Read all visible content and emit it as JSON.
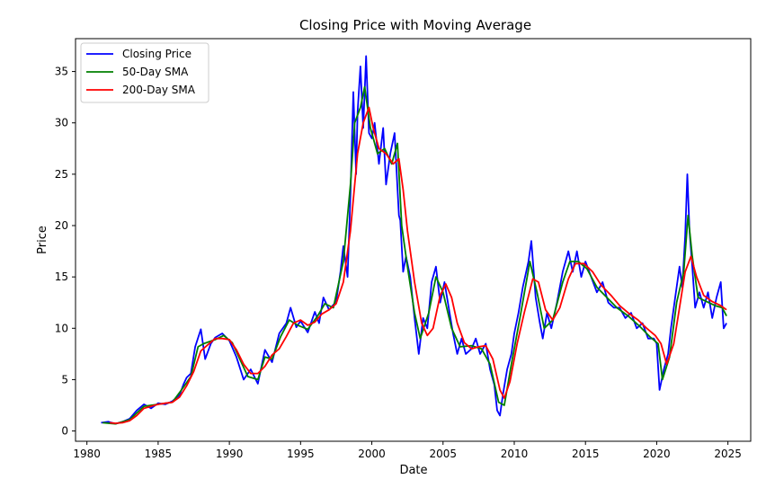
{
  "chart_data": {
    "type": "line",
    "title": "Closing Price with Moving Average",
    "xlabel": "Date",
    "ylabel": "Price",
    "xlim": [
      1979.2,
      2026.6
    ],
    "ylim": [
      -1.0,
      38.2
    ],
    "xticks": [
      1980,
      1985,
      1990,
      1995,
      2000,
      2005,
      2010,
      2015,
      2020,
      2025
    ],
    "yticks": [
      0,
      5,
      10,
      15,
      20,
      25,
      30,
      35
    ],
    "grid": false,
    "legend_position": "top-left",
    "series": [
      {
        "name": "Closing Price",
        "color": "#0000ff",
        "points": [
          [
            1981.0,
            0.8
          ],
          [
            1981.5,
            0.9
          ],
          [
            1982.0,
            0.7
          ],
          [
            1982.5,
            0.9
          ],
          [
            1983.0,
            1.2
          ],
          [
            1983.5,
            2.0
          ],
          [
            1984.0,
            2.6
          ],
          [
            1984.5,
            2.2
          ],
          [
            1985.0,
            2.7
          ],
          [
            1985.5,
            2.6
          ],
          [
            1986.0,
            2.9
          ],
          [
            1986.5,
            3.5
          ],
          [
            1986.8,
            4.6
          ],
          [
            1987.0,
            5.2
          ],
          [
            1987.3,
            5.6
          ],
          [
            1987.6,
            8.2
          ],
          [
            1988.0,
            9.9
          ],
          [
            1988.3,
            7.0
          ],
          [
            1988.7,
            8.5
          ],
          [
            1989.0,
            9.1
          ],
          [
            1989.5,
            9.5
          ],
          [
            1990.0,
            8.8
          ],
          [
            1990.5,
            7.2
          ],
          [
            1991.0,
            5.0
          ],
          [
            1991.5,
            6.0
          ],
          [
            1992.0,
            4.6
          ],
          [
            1992.5,
            7.9
          ],
          [
            1993.0,
            6.7
          ],
          [
            1993.5,
            9.5
          ],
          [
            1994.0,
            10.5
          ],
          [
            1994.3,
            12.0
          ],
          [
            1994.7,
            10.1
          ],
          [
            1995.0,
            10.7
          ],
          [
            1995.5,
            9.6
          ],
          [
            1996.0,
            11.6
          ],
          [
            1996.3,
            10.5
          ],
          [
            1996.6,
            13.0
          ],
          [
            1997.0,
            11.8
          ],
          [
            1997.5,
            12.6
          ],
          [
            1997.8,
            15.5
          ],
          [
            1998.0,
            18.0
          ],
          [
            1998.3,
            15.0
          ],
          [
            1998.5,
            23.0
          ],
          [
            1998.7,
            33.0
          ],
          [
            1998.9,
            25.0
          ],
          [
            1999.0,
            31.0
          ],
          [
            1999.2,
            35.5
          ],
          [
            1999.4,
            29.5
          ],
          [
            1999.6,
            36.5
          ],
          [
            1999.8,
            29.0
          ],
          [
            2000.0,
            28.5
          ],
          [
            2000.2,
            30.0
          ],
          [
            2000.5,
            26.0
          ],
          [
            2000.8,
            29.5
          ],
          [
            2001.0,
            24.0
          ],
          [
            2001.3,
            27.0
          ],
          [
            2001.6,
            29.0
          ],
          [
            2001.9,
            21.0
          ],
          [
            2002.0,
            20.5
          ],
          [
            2002.2,
            15.5
          ],
          [
            2002.4,
            17.0
          ],
          [
            2002.7,
            15.0
          ],
          [
            2003.0,
            11.0
          ],
          [
            2003.3,
            7.5
          ],
          [
            2003.6,
            11.0
          ],
          [
            2003.9,
            10.0
          ],
          [
            2004.2,
            14.5
          ],
          [
            2004.5,
            16.0
          ],
          [
            2004.8,
            12.5
          ],
          [
            2005.1,
            14.5
          ],
          [
            2005.4,
            12.0
          ],
          [
            2005.7,
            9.5
          ],
          [
            2006.0,
            7.5
          ],
          [
            2006.3,
            9.0
          ],
          [
            2006.6,
            7.5
          ],
          [
            2007.0,
            8.0
          ],
          [
            2007.3,
            9.0
          ],
          [
            2007.6,
            7.5
          ],
          [
            2008.0,
            8.5
          ],
          [
            2008.3,
            6.0
          ],
          [
            2008.6,
            4.5
          ],
          [
            2008.8,
            2.0
          ],
          [
            2009.0,
            1.5
          ],
          [
            2009.2,
            3.5
          ],
          [
            2009.5,
            6.0
          ],
          [
            2009.8,
            7.5
          ],
          [
            2010.0,
            9.5
          ],
          [
            2010.3,
            11.5
          ],
          [
            2010.6,
            14.0
          ],
          [
            2011.0,
            16.5
          ],
          [
            2011.2,
            18.5
          ],
          [
            2011.5,
            13.0
          ],
          [
            2011.8,
            10.5
          ],
          [
            2012.0,
            9.0
          ],
          [
            2012.3,
            11.5
          ],
          [
            2012.6,
            10.0
          ],
          [
            2013.0,
            12.5
          ],
          [
            2013.4,
            15.5
          ],
          [
            2013.8,
            17.5
          ],
          [
            2014.1,
            15.5
          ],
          [
            2014.4,
            17.5
          ],
          [
            2014.7,
            15.0
          ],
          [
            2015.0,
            16.5
          ],
          [
            2015.4,
            15.0
          ],
          [
            2015.8,
            13.5
          ],
          [
            2016.2,
            14.5
          ],
          [
            2016.6,
            12.5
          ],
          [
            2017.0,
            12.0
          ],
          [
            2017.4,
            12.0
          ],
          [
            2017.8,
            11.0
          ],
          [
            2018.2,
            11.5
          ],
          [
            2018.6,
            10.0
          ],
          [
            2019.0,
            10.5
          ],
          [
            2019.4,
            9.0
          ],
          [
            2019.8,
            9.0
          ],
          [
            2020.0,
            8.5
          ],
          [
            2020.2,
            4.0
          ],
          [
            2020.5,
            6.0
          ],
          [
            2020.8,
            7.5
          ],
          [
            2021.0,
            10.0
          ],
          [
            2021.3,
            13.0
          ],
          [
            2021.6,
            16.0
          ],
          [
            2021.8,
            14.0
          ],
          [
            2022.0,
            19.0
          ],
          [
            2022.15,
            25.0
          ],
          [
            2022.3,
            19.5
          ],
          [
            2022.5,
            16.0
          ],
          [
            2022.7,
            12.0
          ],
          [
            2023.0,
            13.5
          ],
          [
            2023.3,
            12.0
          ],
          [
            2023.6,
            13.5
          ],
          [
            2023.9,
            11.0
          ],
          [
            2024.2,
            13.0
          ],
          [
            2024.5,
            14.5
          ],
          [
            2024.7,
            10.0
          ],
          [
            2024.9,
            10.5
          ]
        ]
      },
      {
        "name": "50-Day SMA",
        "color": "#008000",
        "points": [
          [
            1981.1,
            0.8
          ],
          [
            1982.0,
            0.7
          ],
          [
            1983.0,
            1.1
          ],
          [
            1984.0,
            2.4
          ],
          [
            1985.0,
            2.6
          ],
          [
            1986.0,
            2.8
          ],
          [
            1986.8,
            4.3
          ],
          [
            1987.3,
            5.3
          ],
          [
            1987.8,
            8.2
          ],
          [
            1988.2,
            8.5
          ],
          [
            1989.0,
            8.9
          ],
          [
            1989.6,
            9.3
          ],
          [
            1990.2,
            8.6
          ],
          [
            1990.8,
            6.8
          ],
          [
            1991.3,
            5.3
          ],
          [
            1992.0,
            5.0
          ],
          [
            1992.5,
            7.2
          ],
          [
            1993.0,
            7.0
          ],
          [
            1993.6,
            9.2
          ],
          [
            1994.2,
            10.8
          ],
          [
            1994.8,
            10.3
          ],
          [
            1995.5,
            9.9
          ],
          [
            1996.2,
            11.2
          ],
          [
            1996.7,
            12.4
          ],
          [
            1997.3,
            12.0
          ],
          [
            1998.0,
            16.5
          ],
          [
            1998.5,
            24.0
          ],
          [
            1998.8,
            30.0
          ],
          [
            1999.2,
            31.5
          ],
          [
            1999.5,
            33.5
          ],
          [
            1999.9,
            29.5
          ],
          [
            2000.4,
            27.0
          ],
          [
            2000.9,
            27.5
          ],
          [
            2001.4,
            26.0
          ],
          [
            2001.8,
            28.0
          ],
          [
            2002.1,
            20.0
          ],
          [
            2002.5,
            16.0
          ],
          [
            2003.0,
            11.5
          ],
          [
            2003.4,
            9.0
          ],
          [
            2004.0,
            11.5
          ],
          [
            2004.5,
            15.0
          ],
          [
            2005.0,
            13.5
          ],
          [
            2005.6,
            10.0
          ],
          [
            2006.2,
            8.2
          ],
          [
            2007.0,
            8.3
          ],
          [
            2007.7,
            8.0
          ],
          [
            2008.3,
            6.5
          ],
          [
            2008.9,
            2.8
          ],
          [
            2009.3,
            2.5
          ],
          [
            2009.8,
            6.5
          ],
          [
            2010.4,
            11.0
          ],
          [
            2011.1,
            16.5
          ],
          [
            2011.6,
            13.5
          ],
          [
            2012.1,
            10.0
          ],
          [
            2012.7,
            10.8
          ],
          [
            2013.4,
            14.5
          ],
          [
            2013.9,
            16.5
          ],
          [
            2014.5,
            16.5
          ],
          [
            2015.1,
            15.8
          ],
          [
            2015.8,
            14.0
          ],
          [
            2016.5,
            13.0
          ],
          [
            2017.2,
            12.0
          ],
          [
            2018.0,
            11.2
          ],
          [
            2018.8,
            10.2
          ],
          [
            2019.5,
            9.2
          ],
          [
            2020.1,
            8.5
          ],
          [
            2020.4,
            5.0
          ],
          [
            2020.9,
            7.2
          ],
          [
            2021.4,
            12.5
          ],
          [
            2021.9,
            15.5
          ],
          [
            2022.2,
            21.0
          ],
          [
            2022.5,
            17.0
          ],
          [
            2022.9,
            13.0
          ],
          [
            2023.5,
            12.6
          ],
          [
            2024.1,
            12.2
          ],
          [
            2024.6,
            12.0
          ],
          [
            2024.9,
            11.2
          ]
        ]
      },
      {
        "name": "200-Day SMA",
        "color": "#ff0000",
        "points": [
          [
            1981.6,
            0.8
          ],
          [
            1982.0,
            0.75
          ],
          [
            1982.5,
            0.8
          ],
          [
            1983.0,
            1.0
          ],
          [
            1983.5,
            1.5
          ],
          [
            1984.0,
            2.2
          ],
          [
            1984.5,
            2.4
          ],
          [
            1985.0,
            2.6
          ],
          [
            1985.5,
            2.7
          ],
          [
            1986.0,
            2.8
          ],
          [
            1986.5,
            3.3
          ],
          [
            1987.0,
            4.4
          ],
          [
            1987.5,
            5.8
          ],
          [
            1988.0,
            7.8
          ],
          [
            1988.5,
            8.4
          ],
          [
            1989.0,
            9.0
          ],
          [
            1989.5,
            9.0
          ],
          [
            1990.0,
            8.9
          ],
          [
            1990.5,
            7.9
          ],
          [
            1991.0,
            6.5
          ],
          [
            1991.5,
            5.6
          ],
          [
            1992.0,
            5.6
          ],
          [
            1992.5,
            6.3
          ],
          [
            1993.0,
            7.4
          ],
          [
            1993.5,
            8.0
          ],
          [
            1994.0,
            9.2
          ],
          [
            1994.5,
            10.5
          ],
          [
            1995.0,
            10.8
          ],
          [
            1995.5,
            10.3
          ],
          [
            1996.0,
            10.6
          ],
          [
            1996.5,
            11.4
          ],
          [
            1997.0,
            11.8
          ],
          [
            1997.5,
            12.4
          ],
          [
            1998.0,
            14.5
          ],
          [
            1998.5,
            19.5
          ],
          [
            1999.0,
            27.0
          ],
          [
            1999.4,
            30.0
          ],
          [
            1999.8,
            31.5
          ],
          [
            2000.1,
            29.5
          ],
          [
            2000.5,
            27.5
          ],
          [
            2001.0,
            27.0
          ],
          [
            2001.5,
            26.0
          ],
          [
            2001.9,
            26.5
          ],
          [
            2002.2,
            23.5
          ],
          [
            2002.5,
            19.5
          ],
          [
            2003.0,
            14.5
          ],
          [
            2003.5,
            10.5
          ],
          [
            2003.9,
            9.3
          ],
          [
            2004.3,
            10.0
          ],
          [
            2004.8,
            13.2
          ],
          [
            2005.2,
            14.3
          ],
          [
            2005.6,
            13.0
          ],
          [
            2006.0,
            10.5
          ],
          [
            2006.5,
            8.6
          ],
          [
            2007.0,
            8.0
          ],
          [
            2007.5,
            8.2
          ],
          [
            2008.0,
            8.3
          ],
          [
            2008.5,
            7.0
          ],
          [
            2009.0,
            4.0
          ],
          [
            2009.3,
            3.2
          ],
          [
            2009.7,
            4.8
          ],
          [
            2010.2,
            8.5
          ],
          [
            2010.7,
            11.5
          ],
          [
            2011.3,
            14.8
          ],
          [
            2011.7,
            14.5
          ],
          [
            2012.2,
            11.8
          ],
          [
            2012.7,
            10.8
          ],
          [
            2013.2,
            12.0
          ],
          [
            2013.8,
            14.8
          ],
          [
            2014.3,
            16.3
          ],
          [
            2014.9,
            16.3
          ],
          [
            2015.5,
            15.5
          ],
          [
            2016.1,
            14.2
          ],
          [
            2016.8,
            13.2
          ],
          [
            2017.4,
            12.2
          ],
          [
            2018.0,
            11.5
          ],
          [
            2018.7,
            10.8
          ],
          [
            2019.3,
            10.0
          ],
          [
            2019.9,
            9.3
          ],
          [
            2020.3,
            8.5
          ],
          [
            2020.7,
            6.5
          ],
          [
            2021.2,
            8.5
          ],
          [
            2021.6,
            12.0
          ],
          [
            2022.0,
            15.5
          ],
          [
            2022.4,
            17.0
          ],
          [
            2022.8,
            15.0
          ],
          [
            2023.3,
            13.2
          ],
          [
            2023.9,
            12.6
          ],
          [
            2024.5,
            12.2
          ],
          [
            2024.9,
            11.8
          ]
        ]
      }
    ]
  }
}
